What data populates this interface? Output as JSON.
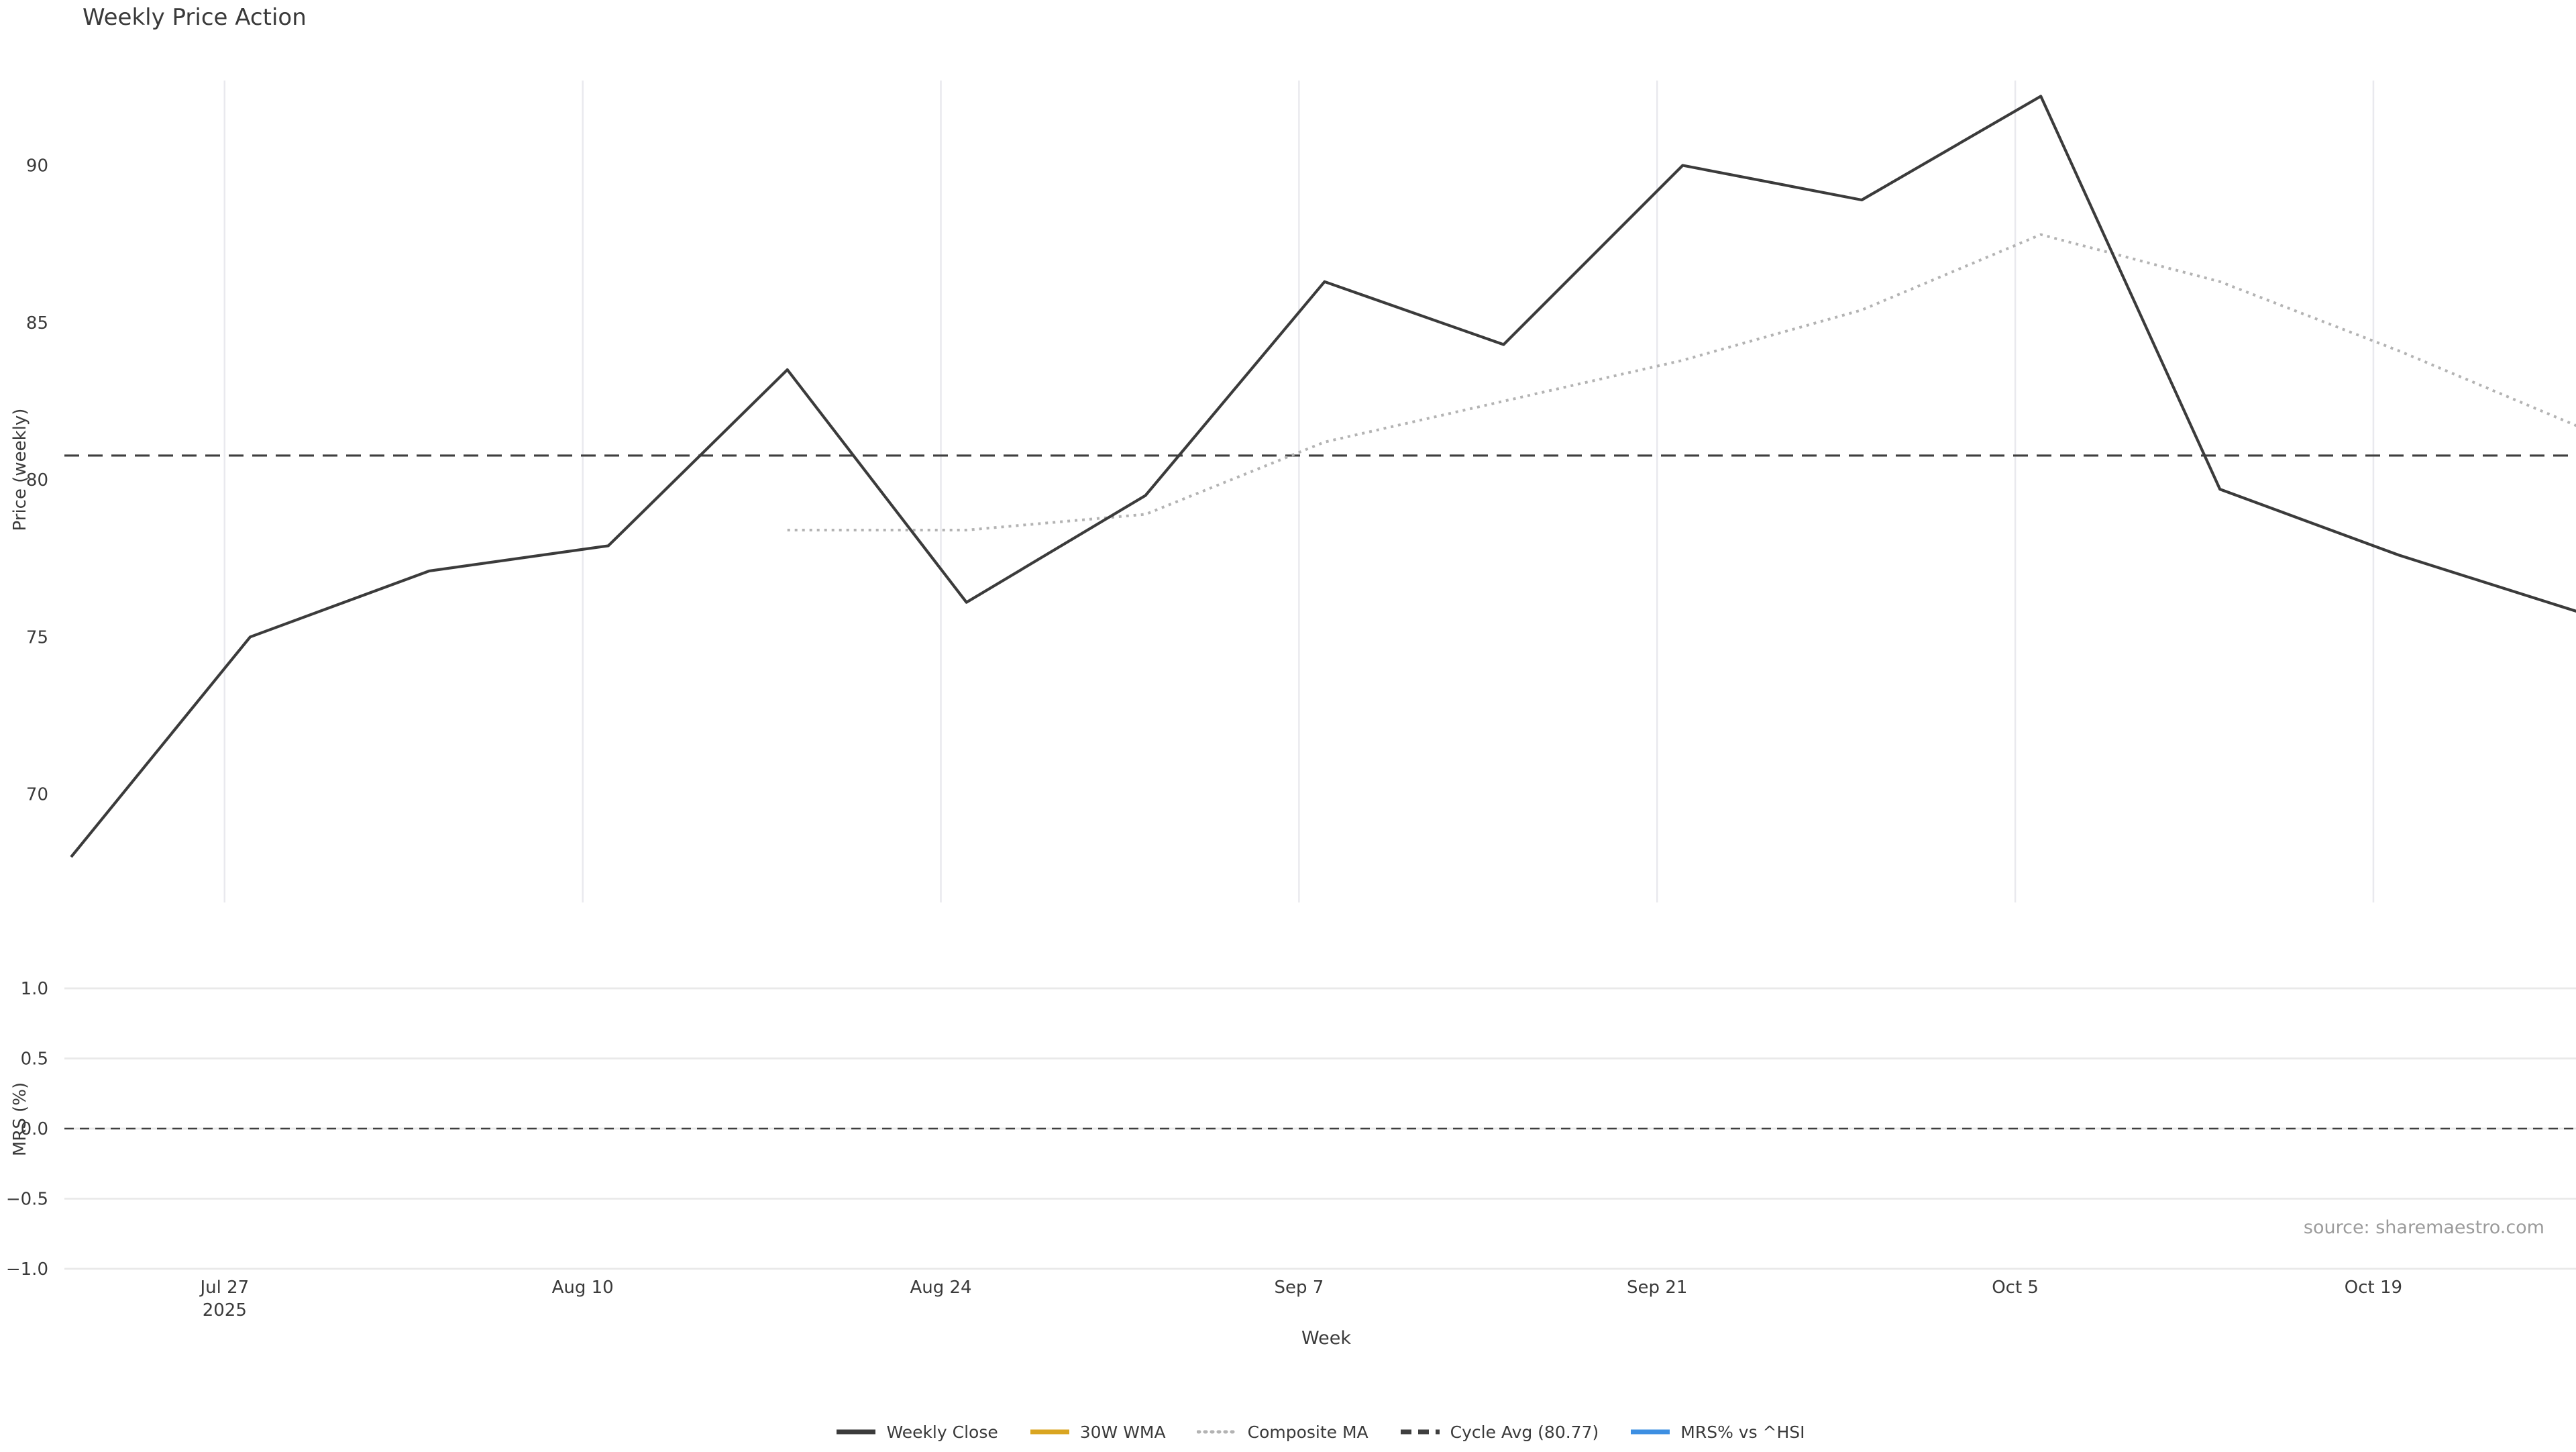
{
  "title": "Weekly Price Action",
  "source_note": "source: sharemaestro.com",
  "x_axis": {
    "label": "Week",
    "ticks": [
      "Jul 27",
      "Aug 10",
      "Aug 24",
      "Sep 7",
      "Sep 21",
      "Oct 5",
      "Oct 19"
    ],
    "first_tick_year": "2025"
  },
  "price_axis": {
    "label": "Price (weekly)",
    "ticks": [
      "90",
      "85",
      "80",
      "75",
      "70"
    ]
  },
  "mrs_axis": {
    "label": "MRS (%)",
    "ticks": [
      "1.0",
      "0.5",
      "0.0",
      "−0.5",
      "−1.0"
    ]
  },
  "legend": {
    "items": [
      {
        "label": "Weekly Close",
        "color": "#3b3b3b",
        "style": "solid"
      },
      {
        "label": "30W WMA",
        "color": "#d9a521",
        "style": "solid"
      },
      {
        "label": "Composite MA",
        "color": "#b3b3b3",
        "style": "dotted"
      },
      {
        "label": "Cycle Avg (80.77)",
        "color": "#3f3f3f",
        "style": "dashed"
      },
      {
        "label": "MRS% vs ^HSI",
        "color": "#3d8fe2",
        "style": "solid"
      }
    ]
  },
  "chart_data": [
    {
      "type": "line",
      "title": "Weekly Price Action",
      "xlabel": "Week",
      "ylabel": "Price (weekly)",
      "x": [
        "Jul 21",
        "Jul 28",
        "Aug 4",
        "Aug 11",
        "Aug 18",
        "Aug 25",
        "Sep 1",
        "Sep 8",
        "Sep 15",
        "Sep 22",
        "Sep 29",
        "Oct 6",
        "Oct 13",
        "Oct 20",
        "Oct 27"
      ],
      "series": [
        {
          "name": "Weekly Close",
          "color": "#3b3b3b",
          "style": "solid",
          "values": [
            68.0,
            75.0,
            77.1,
            77.9,
            83.5,
            76.1,
            79.5,
            86.3,
            84.3,
            90.0,
            88.9,
            92.2,
            79.7,
            77.6,
            75.8
          ]
        },
        {
          "name": "30W WMA",
          "color": "#d9a521",
          "style": "solid",
          "values": []
        },
        {
          "name": "Composite MA",
          "color": "#b3b3b3",
          "style": "dotted",
          "values": [
            null,
            null,
            null,
            null,
            78.4,
            78.4,
            78.9,
            81.2,
            82.5,
            83.8,
            85.4,
            87.8,
            86.3,
            84.1,
            81.7
          ]
        }
      ],
      "cycle_avg": 80.77,
      "yticks": [
        90,
        85,
        80,
        75,
        70
      ],
      "ylim": [
        66.6,
        92.7
      ],
      "xtick_labels": [
        "Jul 27 2025",
        "Aug 10",
        "Aug 24",
        "Sep 7",
        "Sep 21",
        "Oct 5",
        "Oct 19"
      ],
      "grid": "vertical-only",
      "legend_position": "below-figure"
    },
    {
      "type": "line",
      "xlabel": "Week",
      "ylabel": "MRS (%)",
      "series": [
        {
          "name": "MRS% vs ^HSI",
          "color": "#3d8fe2",
          "style": "solid",
          "values": []
        }
      ],
      "zero_line": 0.0,
      "yticks": [
        1.0,
        0.5,
        0.0,
        -0.5,
        -1.0
      ],
      "ylim": [
        -1.2,
        1.2
      ],
      "grid": "horizontal-only"
    }
  ]
}
